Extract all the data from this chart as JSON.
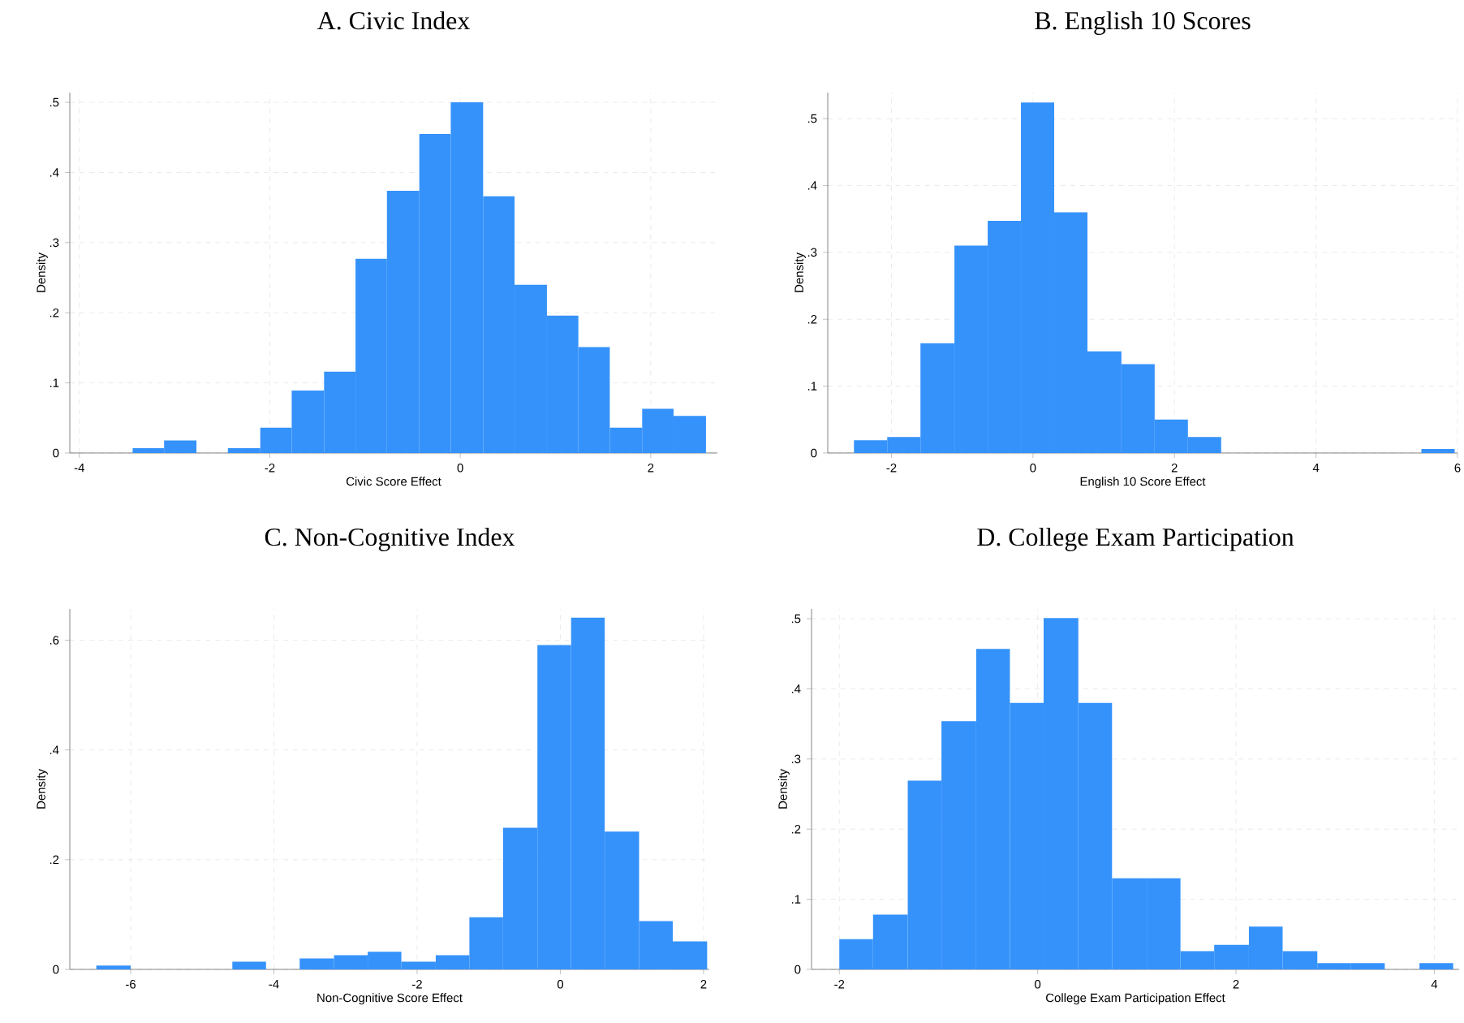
{
  "chart_data": [
    {
      "type": "histogram",
      "title": "A. Civic Index",
      "xlabel": "Civic Score Effect",
      "ylabel": "Density",
      "color": "#3592fb",
      "grid": true,
      "bins": [
        -3.44,
        -3.11,
        -2.77,
        -2.44,
        -2.1,
        -1.77,
        -1.43,
        -1.1,
        -0.77,
        -0.43,
        -0.1,
        0.24,
        0.57,
        0.91,
        1.24,
        1.57,
        1.91,
        2.24,
        2.58
      ],
      "values": [
        0.007,
        0.018,
        0,
        0.007,
        0.036,
        0.089,
        0.116,
        0.277,
        0.374,
        0.455,
        0.5,
        0.366,
        0.24,
        0.196,
        0.151,
        0.036,
        0.063,
        0.053
      ],
      "xlim": [
        -4.1,
        2.7
      ],
      "ylim": [
        0,
        0.514
      ],
      "xticks": [
        -4,
        -2,
        0,
        2
      ],
      "yticks": [
        0,
        {
          "value": 0.1,
          "label": ".1"
        },
        {
          "value": 0.2,
          "label": ".2"
        },
        {
          "value": 0.3,
          "label": ".3"
        },
        {
          "value": 0.4,
          "label": ".4"
        },
        {
          "value": 0.5,
          "label": ".5"
        }
      ]
    },
    {
      "type": "histogram",
      "title": "B. English 10 Scores",
      "xlabel": "English 10 Score Effect",
      "ylabel": "Density",
      "color": "#3592fb",
      "grid": true,
      "bins": [
        -2.53,
        -2.06,
        -1.59,
        -1.11,
        -0.64,
        -0.17,
        0.3,
        0.77,
        1.25,
        1.72,
        2.19,
        2.66,
        5.49,
        5.96
      ],
      "values": [
        0.019,
        0.024,
        0.164,
        0.31,
        0.347,
        0.524,
        0.36,
        0.152,
        0.133,
        0.05,
        0.024,
        0,
        0.006
      ],
      "xlim": [
        -2.9,
        6.0
      ],
      "ylim": [
        0,
        0.539
      ],
      "xticks": [
        -2,
        0,
        2,
        4,
        6
      ],
      "yticks": [
        0,
        {
          "value": 0.1,
          "label": ".1"
        },
        {
          "value": 0.2,
          "label": ".2"
        },
        {
          "value": 0.3,
          "label": ".3"
        },
        {
          "value": 0.4,
          "label": ".4"
        },
        {
          "value": 0.5,
          "label": ".5"
        }
      ]
    },
    {
      "type": "histogram",
      "title": "C. Non-Cognitive Index",
      "xlabel": "Non-Cognitive Score Effect",
      "ylabel": "Density",
      "color": "#3592fb",
      "grid": true,
      "bins": [
        -6.48,
        -6.0,
        -4.58,
        -4.11,
        -3.64,
        -3.16,
        -2.69,
        -2.22,
        -1.74,
        -1.27,
        -0.8,
        -0.32,
        0.15,
        0.62,
        1.1,
        1.57,
        2.05
      ],
      "values": [
        0.007,
        0,
        0.014,
        0,
        0.02,
        0.026,
        0.032,
        0.014,
        0.026,
        0.095,
        0.258,
        0.591,
        0.641,
        0.251,
        0.088,
        0.051
      ],
      "xlim": [
        -6.85,
        2.08
      ],
      "ylim": [
        0,
        0.657
      ],
      "xticks": [
        -6,
        -4,
        -2,
        0,
        2
      ],
      "yticks": [
        0,
        {
          "value": 0.2,
          "label": ".2"
        },
        {
          "value": 0.4,
          "label": ".4"
        },
        {
          "value": 0.6,
          "label": ".6"
        }
      ]
    },
    {
      "type": "histogram",
      "title": "D. College Exam Participation",
      "xlabel": "College Exam Participation Effect",
      "ylabel": "Density",
      "color": "#3592fb",
      "grid": true,
      "bins": [
        -2.0,
        -1.66,
        -1.31,
        -0.97,
        -0.62,
        -0.28,
        0.06,
        0.41,
        0.75,
        1.1,
        1.44,
        1.78,
        2.13,
        2.47,
        2.82,
        3.16,
        3.5,
        3.85,
        4.19
      ],
      "values": [
        0.043,
        0.078,
        0.269,
        0.354,
        0.457,
        0.38,
        0.501,
        0.38,
        0.13,
        0.13,
        0.026,
        0.035,
        0.061,
        0.026,
        0.009,
        0.009,
        0,
        0.009
      ],
      "xlim": [
        -2.28,
        4.25
      ],
      "ylim": [
        0,
        0.514
      ],
      "xticks": [
        -2,
        0,
        2,
        4
      ],
      "yticks": [
        0,
        {
          "value": 0.1,
          "label": ".1"
        },
        {
          "value": 0.2,
          "label": ".2"
        },
        {
          "value": 0.3,
          "label": ".3"
        },
        {
          "value": 0.4,
          "label": ".4"
        },
        {
          "value": 0.5,
          "label": ".5"
        }
      ]
    }
  ]
}
